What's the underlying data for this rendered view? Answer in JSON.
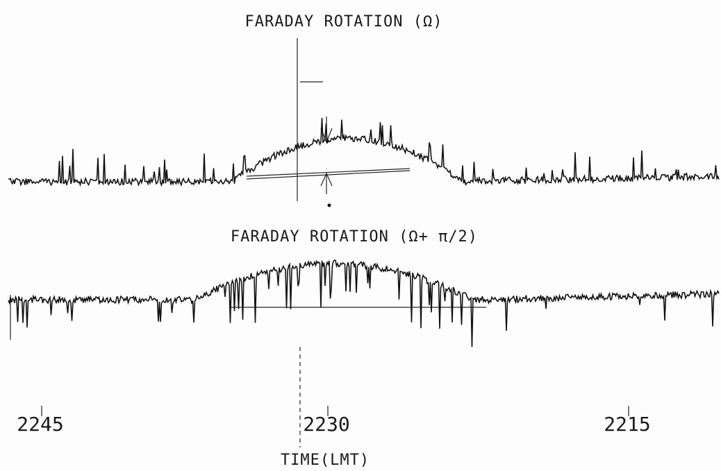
{
  "panels": [
    {
      "label": "FARADAY ROTATION (Ω)"
    },
    {
      "label": "FARADAY ROTATION (Ω+ π/2)"
    }
  ],
  "time_axis": {
    "ticks": [
      "2245",
      "2230",
      "2215"
    ],
    "label": "TIME(LMT)"
  }
}
